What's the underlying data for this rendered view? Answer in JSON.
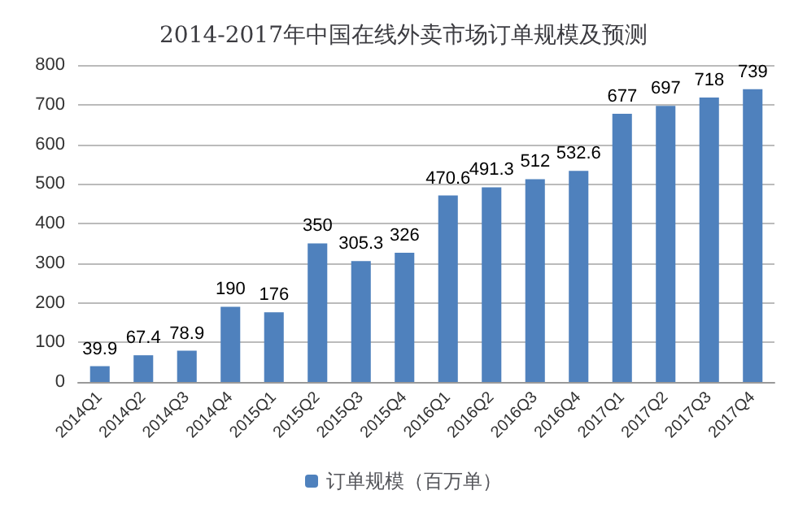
{
  "chart_data": {
    "type": "bar",
    "title": "2014-2017年中国在线外卖市场订单规模及预测",
    "categories": [
      "2014Q1",
      "2014Q2",
      "2014Q3",
      "2014Q4",
      "2015Q1",
      "2015Q2",
      "2015Q3",
      "2015Q4",
      "2016Q1",
      "2016Q2",
      "2016Q3",
      "2016Q4",
      "2017Q1",
      "2017Q2",
      "2017Q3",
      "2017Q4"
    ],
    "series": [
      {
        "name": "订单规模（百万单）",
        "color": "#4f81bd",
        "values": [
          39.9,
          67.4,
          78.9,
          190,
          176,
          350,
          305.3,
          326,
          470.6,
          491.3,
          512,
          532.6,
          677,
          697,
          718,
          739
        ]
      }
    ],
    "ylim": [
      0,
      800
    ],
    "yticks": [
      0,
      100,
      200,
      300,
      400,
      500,
      600,
      700,
      800
    ],
    "grid": "y",
    "legend": "bottom",
    "data_labels": true
  }
}
